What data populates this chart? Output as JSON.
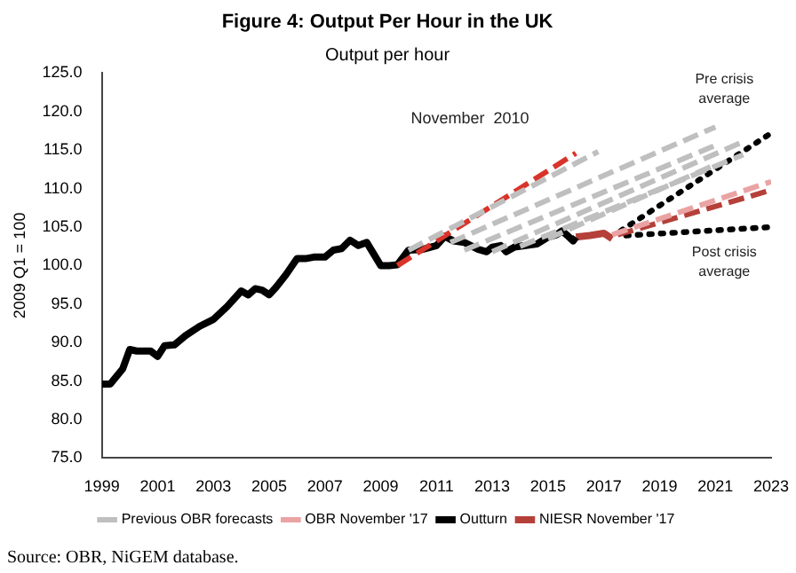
{
  "chart_data": {
    "type": "line",
    "title": "Figure 4: Output Per Hour in the UK",
    "subtitle": "Output per hour",
    "ylabel": "2009 Q1 = 100",
    "xlim": [
      1999,
      2023
    ],
    "xticks": [
      1999,
      2001,
      2003,
      2005,
      2007,
      2009,
      2011,
      2013,
      2015,
      2017,
      2019,
      2021,
      2023
    ],
    "ylim": [
      75,
      125
    ],
    "yticks": [
      {
        "value": 75,
        "label": "75.0"
      },
      {
        "value": 80,
        "label": "80.0"
      },
      {
        "value": 85,
        "label": "85.0"
      },
      {
        "value": 90,
        "label": "90.0"
      },
      {
        "value": 95,
        "label": "95.0"
      },
      {
        "value": 100,
        "label": "100.0"
      },
      {
        "value": 105,
        "label": "105.0"
      },
      {
        "value": 110,
        "label": "110.0"
      },
      {
        "value": 115,
        "label": "115.0"
      },
      {
        "value": 120,
        "label": "120.0"
      },
      {
        "value": 125,
        "label": "125.0"
      }
    ],
    "grid": false,
    "legend": "bottom",
    "marker": "none",
    "series": [
      {
        "name": "Previous OBR forecasts",
        "color": "#bfbfbf",
        "line_style": "dashed",
        "x": [
          2010,
          2016.8
        ],
        "values": [
          102,
          114.8
        ]
      },
      {
        "color": "#bfbfbf",
        "line_style": "dashed",
        "x": [
          2011.5,
          2021
        ],
        "values": [
          103,
          118
        ]
      },
      {
        "color": "#bfbfbf",
        "line_style": "dashed",
        "x": [
          2012,
          2021
        ],
        "values": [
          102,
          115.6
        ]
      },
      {
        "color": "#bfbfbf",
        "line_style": "dashed",
        "x": [
          2013,
          2022
        ],
        "values": [
          101.8,
          116.1
        ]
      },
      {
        "color": "#bfbfbf",
        "line_style": "dashed",
        "x": [
          2014,
          2022
        ],
        "values": [
          102.5,
          114.4
        ]
      },
      {
        "color": "#bfbfbf",
        "line_style": "dashed",
        "x": [
          2015,
          2021
        ],
        "values": [
          103.5,
          113.1
        ]
      },
      {
        "color": "#d9342b",
        "line_style": "dashed",
        "x": [
          2009.6,
          2016
        ],
        "values": [
          100,
          114.6
        ]
      },
      {
        "name": "OBR November '17",
        "color": "#eaa3a3",
        "line_style": "dashed",
        "x": [
          2017.3,
          2023
        ],
        "values": [
          104,
          110.9
        ]
      },
      {
        "name": "Outturn",
        "color": "#000000",
        "line_style": "solid",
        "x": [
          1999,
          1999.3,
          1999.75,
          2000,
          2000.25,
          2000.75,
          2001,
          2001.25,
          2001.6,
          2002,
          2002.5,
          2003,
          2003.5,
          2004,
          2004.25,
          2004.5,
          2004.75,
          2005,
          2005.25,
          2005.6,
          2006,
          2006.3,
          2006.6,
          2007,
          2007.3,
          2007.6,
          2007.9,
          2008.2,
          2008.5,
          2009,
          2009.3,
          2009.6,
          2010,
          2010.5,
          2011,
          2011.3,
          2011.6,
          2012,
          2012.5,
          2012.8,
          2013,
          2013.3,
          2013.5,
          2013.8,
          2014.2,
          2014.6,
          2015,
          2015.3,
          2015.5,
          2015.7,
          2015.9,
          2016
        ],
        "values": [
          84.6,
          84.6,
          86.6,
          89.1,
          88.9,
          88.9,
          88.2,
          89.6,
          89.7,
          90.9,
          92.1,
          93,
          94.7,
          96.7,
          96.2,
          97,
          96.8,
          96.2,
          97.2,
          98.8,
          100.9,
          100.9,
          101.1,
          101.1,
          102,
          102.2,
          103.3,
          102.6,
          103,
          100,
          100,
          100.1,
          102,
          102.1,
          102.6,
          103.8,
          103.2,
          103,
          102.1,
          101.8,
          102.4,
          102.6,
          101.8,
          102.4,
          102.6,
          102.8,
          103.7,
          104,
          104.5,
          103.9,
          103.2,
          103.7
        ]
      },
      {
        "name": "NIESR November '17",
        "color": "#b5403a",
        "line_style": "solid",
        "x": [
          2016,
          2016.5,
          2017,
          2017.3
        ],
        "values": [
          103.7,
          103.9,
          104.2,
          103.5
        ]
      },
      {
        "color": "#b5403a",
        "line_style": "dashed",
        "x": [
          2017.5,
          2023
        ],
        "values": [
          104,
          109.8
        ]
      },
      {
        "color": "#000000",
        "line_style": "dotted",
        "x": [
          2017.6,
          2023
        ],
        "values": [
          104.5,
          117.2
        ]
      },
      {
        "color": "#000000",
        "line_style": "dotted",
        "x": [
          2017.8,
          2023
        ],
        "values": [
          103.9,
          105
        ]
      }
    ],
    "annotations": [
      "November  2010",
      "Pre crisis average",
      "Post crisis average",
      "Source: OBR, NiGEM database."
    ]
  }
}
